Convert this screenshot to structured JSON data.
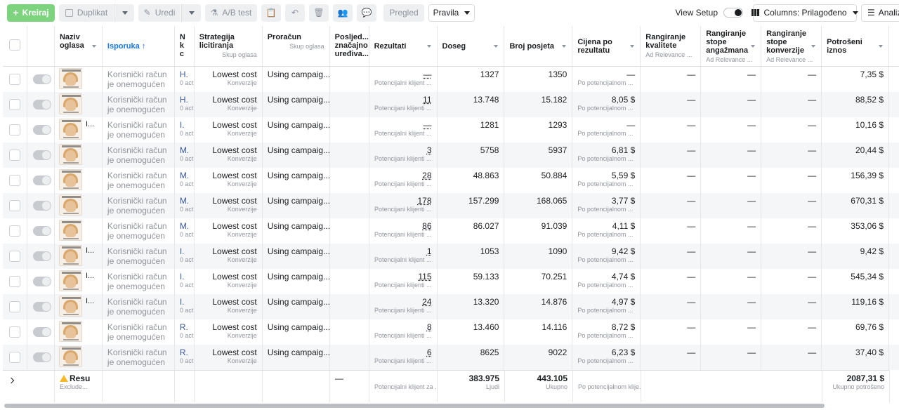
{
  "toolbar": {
    "create": "Kreiraj",
    "duplicate": "Duplikat",
    "edit": "Uredi",
    "ab_test": "A/B test",
    "preview": "Pregled",
    "rules": "Pravila",
    "view_setup": "View Setup",
    "columns": "Columns: Prilagođeno",
    "analyze": "Analiza"
  },
  "headers": {
    "name": "Naziv oglasa",
    "delivery": "Isporuka",
    "delivery_arrow": "↑",
    "narrow": "N k c",
    "bid_strategy": "Strategija licitiranja",
    "bid_sub": "Skup oglasa",
    "budget": "Proračun",
    "budget_sub": "Skup oglasa",
    "last_edit": "Posljed... značajno uređiva...",
    "results": "Rezultati",
    "reach": "Doseg",
    "visits": "Broj posjeta",
    "cost_per_result": "Cijena po rezultatu",
    "quality_rank": "Rangiranje kvalitete",
    "quality_sub": "Ad Relevance ...",
    "engagement_rank": "Rangiranje stope angažmana",
    "engagement_sub": "Ad Relevance ...",
    "conversion_rank": "Rangiranje stope konverzije",
    "conversion_sub": "Ad Relevance ...",
    "spent": "Potrošeni iznos"
  },
  "rows": [
    {
      "name": "",
      "delivery": "Korisnički račun je onemogućen",
      "n1": "H.",
      "n2": "0 act",
      "bid": "Lowest cost",
      "bid_sub": "Konverzije",
      "budget": "Using campaig...",
      "results": "—",
      "results_sub": "Potencijalni klijent ...",
      "reach": "1327",
      "visits": "1350",
      "cpr": "—",
      "cpr_sub": "Po potencijalnom ...",
      "q": "—",
      "e": "—",
      "c": "—",
      "spent": "7,35 $"
    },
    {
      "name": "",
      "delivery": "Korisnički račun je onemogućen",
      "n1": "H.",
      "n2": "0 act",
      "bid": "Lowest cost",
      "bid_sub": "Konverzije",
      "budget": "Using campaig...",
      "results": "11",
      "results_sub": "Potencijani klijenti ...",
      "reach": "13.748",
      "visits": "15.182",
      "cpr": "8,05 $",
      "cpr_sub": "Po potencijalnom ...",
      "q": "—",
      "e": "—",
      "c": "—",
      "spent": "88,52 $"
    },
    {
      "name": "I...",
      "delivery": "Korisnički račun je onemogućen",
      "n1": "I.",
      "n2": "0 act",
      "bid": "Lowest cost",
      "bid_sub": "Konverzije",
      "budget": "Using campaig...",
      "results": "—",
      "results_sub": "Potencijalni klijent ...",
      "reach": "1281",
      "visits": "1293",
      "cpr": "—",
      "cpr_sub": "Po potencijalnom ...",
      "q": "—",
      "e": "—",
      "c": "—",
      "spent": "10,16 $"
    },
    {
      "name": "",
      "delivery": "Korisnički račun je onemogućen",
      "n1": "M.",
      "n2": "0 act",
      "bid": "Lowest cost",
      "bid_sub": "Konverzije",
      "budget": "Using campaig...",
      "results": "3",
      "results_sub": "Potencijani klijenti ...",
      "reach": "5758",
      "visits": "5937",
      "cpr": "6,81 $",
      "cpr_sub": "Po potencijalnom ...",
      "q": "—",
      "e": "—",
      "c": "—",
      "spent": "20,44 $"
    },
    {
      "name": "",
      "delivery": "Korisnički račun je onemogućen",
      "n1": "M.",
      "n2": "0 act",
      "bid": "Lowest cost",
      "bid_sub": "Konverzije",
      "budget": "Using campaig...",
      "results": "28",
      "results_sub": "Potencijani klijenti ...",
      "reach": "48.863",
      "visits": "50.884",
      "cpr": "5,59 $",
      "cpr_sub": "Po potencijalnom ...",
      "q": "—",
      "e": "—",
      "c": "—",
      "spent": "156,39 $"
    },
    {
      "name": "",
      "delivery": "Korisnički račun je onemogućen",
      "n1": "M.",
      "n2": "0 act",
      "bid": "Lowest cost",
      "bid_sub": "Konverzije",
      "budget": "Using campaig...",
      "results": "178",
      "results_sub": "Potencijani klijenti ...",
      "reach": "157.299",
      "visits": "168.065",
      "cpr": "3,77 $",
      "cpr_sub": "Po potencijalnom ...",
      "q": "—",
      "e": "—",
      "c": "—",
      "spent": "670,31 $"
    },
    {
      "name": "",
      "delivery": "Korisnički račun je onemogućen",
      "n1": "M.",
      "n2": "0 act",
      "bid": "Lowest cost",
      "bid_sub": "Konverzije",
      "budget": "Using campaig...",
      "results": "86",
      "results_sub": "Potencijani klijenti ...",
      "reach": "86.027",
      "visits": "91.039",
      "cpr": "4,11 $",
      "cpr_sub": "Po potencijalnom ...",
      "q": "—",
      "e": "—",
      "c": "—",
      "spent": "353,06 $"
    },
    {
      "name": "I...",
      "delivery": "Korisnički račun je onemogućen",
      "n1": "I.",
      "n2": "0 act",
      "bid": "Lowest cost",
      "bid_sub": "Konverzije",
      "budget": "Using campaig...",
      "results": "1",
      "results_sub": "Potencijalni klijent ...",
      "reach": "1053",
      "visits": "1090",
      "cpr": "9,42 $",
      "cpr_sub": "Po potencijalnom ...",
      "q": "—",
      "e": "—",
      "c": "—",
      "spent": "9,42 $"
    },
    {
      "name": "I...",
      "delivery": "Korisnički račun je onemogućen",
      "n1": "I.",
      "n2": "0 act",
      "bid": "Lowest cost",
      "bid_sub": "Konverzije",
      "budget": "Using campaig...",
      "results": "115",
      "results_sub": "Potencijani klijenti ...",
      "reach": "59.133",
      "visits": "70.251",
      "cpr": "4,74 $",
      "cpr_sub": "Po potencijalnom ...",
      "q": "—",
      "e": "—",
      "c": "—",
      "spent": "545,34 $"
    },
    {
      "name": "I...",
      "delivery": "Korisnički račun je onemogućen",
      "n1": "I.",
      "n2": "0 act",
      "bid": "Lowest cost",
      "bid_sub": "Konverzije",
      "budget": "Using campaig...",
      "results": "24",
      "results_sub": "Potencijani klijenti ...",
      "reach": "13.320",
      "visits": "14.876",
      "cpr": "4,97 $",
      "cpr_sub": "Po potencijalnom ...",
      "q": "—",
      "e": "—",
      "c": "—",
      "spent": "119,16 $"
    },
    {
      "name": "",
      "delivery": "Korisnički račun je onemogućen",
      "n1": "R.",
      "n2": "0 act",
      "bid": "Lowest cost",
      "bid_sub": "Konverzije",
      "budget": "Using campaig...",
      "results": "8",
      "results_sub": "Potencijani klijenti ...",
      "reach": "13.460",
      "visits": "14.116",
      "cpr": "8,72 $",
      "cpr_sub": "Po potencijalnom ...",
      "q": "—",
      "e": "—",
      "c": "—",
      "spent": "69,76 $"
    },
    {
      "name": "",
      "delivery": "Korisnički račun je onemogućen",
      "n1": "R.",
      "n2": "0 act",
      "bid": "Lowest cost",
      "bid_sub": "Konverzije",
      "budget": "Using campaig...",
      "results": "6",
      "results_sub": "Potencijani klijenti ...",
      "reach": "8625",
      "visits": "9022",
      "cpr": "6,23 $",
      "cpr_sub": "Po potencijalnom ...",
      "q": "—",
      "e": "—",
      "c": "—",
      "spent": "37,40 $"
    }
  ],
  "summary": {
    "name": "Resu",
    "name_sub": "Exclude...",
    "last_edit": "—",
    "results_sub": "Potencijalni klijent za ...",
    "reach": "383.975",
    "reach_sub": "Ljudi",
    "visits": "443.105",
    "visits_sub": "Ukupno",
    "cpr_sub": "Po potencijalnom klije...",
    "spent": "2087,31 $",
    "spent_sub": "Ukupno potrošeno"
  },
  "colors": {
    "primary": "#7ed37f",
    "link": "#385898",
    "accent_sort": "#1877f2"
  }
}
